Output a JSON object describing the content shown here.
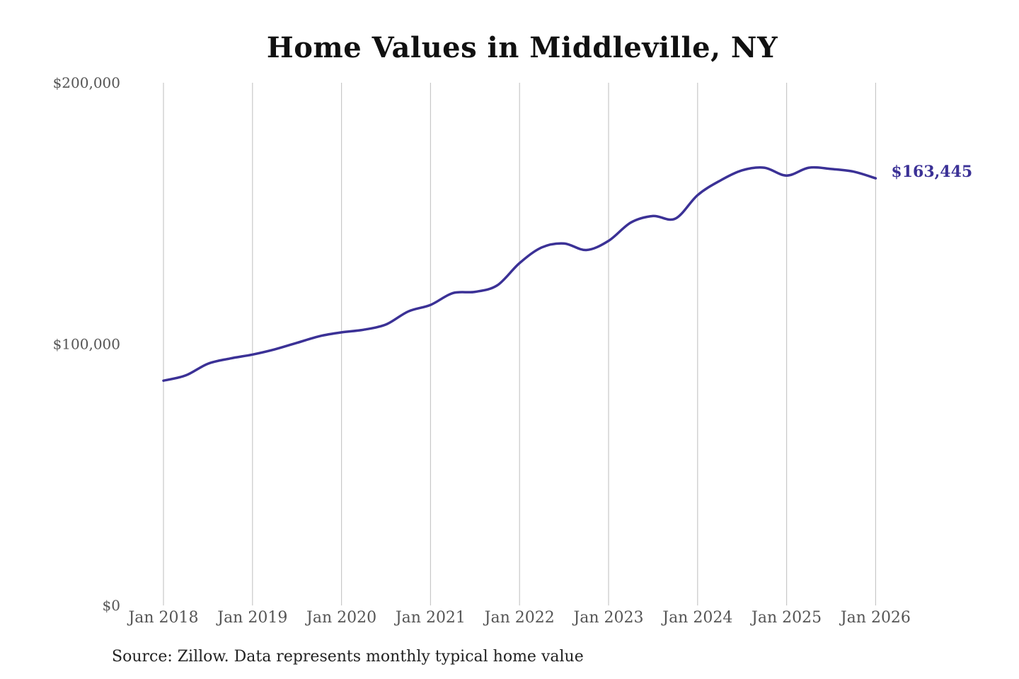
{
  "chart_data": {
    "type": "line",
    "title": "Home Values in Middleville, NY",
    "source_note": "Source: Zillow. Data represents monthly typical home value",
    "ylim": [
      0,
      200000
    ],
    "y_ticks": [
      {
        "value": 0,
        "label": "$0"
      },
      {
        "value": 100000,
        "label": "$100,000"
      },
      {
        "value": 200000,
        "label": "$200,000"
      }
    ],
    "x_ticks": [
      {
        "value": "2018-01",
        "label": "Jan 2018"
      },
      {
        "value": "2019-01",
        "label": "Jan 2019"
      },
      {
        "value": "2020-01",
        "label": "Jan 2020"
      },
      {
        "value": "2021-01",
        "label": "Jan 2021"
      },
      {
        "value": "2022-01",
        "label": "Jan 2022"
      },
      {
        "value": "2023-01",
        "label": "Jan 2023"
      },
      {
        "value": "2024-01",
        "label": "Jan 2024"
      },
      {
        "value": "2025-01",
        "label": "Jan 2025"
      },
      {
        "value": "2026-01",
        "label": "Jan 2026"
      }
    ],
    "grid": "vertical",
    "line_color": "#3b3196",
    "end_label": "$163,445",
    "series": [
      {
        "x": [
          "2018-01",
          "2018-04",
          "2018-07",
          "2018-10",
          "2019-01",
          "2019-04",
          "2019-07",
          "2019-10",
          "2020-01",
          "2020-04",
          "2020-07",
          "2020-10",
          "2021-01",
          "2021-04",
          "2021-07",
          "2021-10",
          "2022-01",
          "2022-04",
          "2022-07",
          "2022-10",
          "2023-01",
          "2023-04",
          "2023-07",
          "2023-10",
          "2024-01",
          "2024-04",
          "2024-07",
          "2024-10",
          "2025-01",
          "2025-04",
          "2025-07",
          "2025-10",
          "2026-01"
        ],
        "values": [
          86000,
          88000,
          92500,
          94500,
          96000,
          98000,
          100500,
          103000,
          104500,
          105500,
          107500,
          112500,
          115000,
          119500,
          120000,
          122500,
          131000,
          137000,
          138500,
          136000,
          139500,
          146500,
          149000,
          148000,
          157000,
          162500,
          166500,
          167500,
          164500,
          167500,
          167000,
          166000,
          163445
        ]
      }
    ]
  }
}
